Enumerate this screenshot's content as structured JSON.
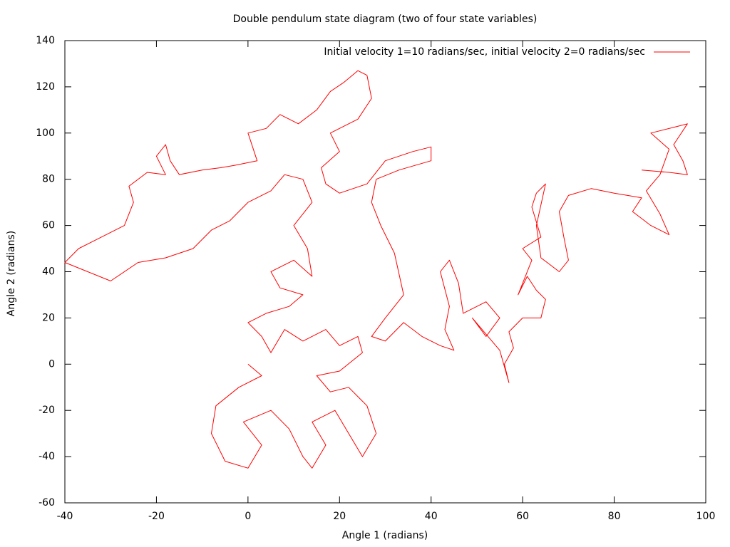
{
  "chart_data": {
    "type": "line",
    "title": "Double pendulum state diagram (two of four state variables)",
    "x_label": "Angle 1 (radians)",
    "y_label": "Angle 2 (radians)",
    "xlim": [
      -40,
      100
    ],
    "xticks": [
      -40,
      -20,
      0,
      20,
      40,
      60,
      80,
      100
    ],
    "ylim": [
      -60,
      140
    ],
    "yticks": [
      -60,
      -40,
      -20,
      0,
      20,
      40,
      60,
      80,
      100,
      120,
      140
    ],
    "legend": "top-right",
    "grid": false,
    "x": [
      0,
      3,
      -2,
      -7,
      -8,
      -5,
      0,
      3,
      -1,
      5,
      9,
      12,
      14,
      17,
      14,
      19,
      22,
      25,
      28,
      26,
      22,
      18,
      15,
      20,
      25,
      24,
      20,
      17,
      12,
      8,
      5,
      3,
      0,
      4,
      9,
      12,
      7,
      5,
      10,
      14,
      13,
      10,
      14,
      12,
      8,
      5,
      0,
      -4,
      -8,
      -12,
      -18,
      -24,
      -30,
      -35,
      -40,
      -37,
      -31,
      -27,
      -25,
      -26,
      -22,
      -18,
      -20,
      -18,
      -17,
      -15,
      -10,
      -6,
      -3,
      2,
      0,
      4,
      7,
      11,
      15,
      18,
      21,
      24,
      26,
      27,
      24,
      18,
      20,
      16,
      17,
      20,
      26,
      30,
      36,
      40,
      40,
      33,
      28,
      27,
      29,
      32,
      34,
      30,
      27,
      30,
      34,
      38,
      42,
      45,
      43,
      44,
      42,
      44,
      46,
      47,
      52,
      55,
      52,
      49,
      55,
      57,
      56,
      58,
      57,
      60,
      64,
      65,
      63,
      61,
      59,
      62,
      60,
      64,
      62,
      63,
      65,
      63,
      64,
      68,
      70,
      69,
      68,
      70,
      75,
      80,
      86,
      84,
      88,
      92,
      90,
      87,
      90,
      92,
      88,
      94,
      96,
      93,
      95,
      96,
      92,
      86
    ],
    "series": [
      {
        "name": "Initial velocity 1=10 radians/sec, initial velocity 2=0 radians/sec",
        "color": "#ff0000",
        "values": [
          0,
          -5,
          -10,
          -18,
          -30,
          -42,
          -45,
          -35,
          -25,
          -20,
          -28,
          -40,
          -45,
          -35,
          -25,
          -20,
          -30,
          -40,
          -30,
          -18,
          -10,
          -12,
          -5,
          -3,
          5,
          12,
          8,
          15,
          10,
          15,
          5,
          12,
          18,
          22,
          25,
          30,
          33,
          40,
          45,
          38,
          50,
          60,
          70,
          80,
          82,
          75,
          70,
          62,
          58,
          50,
          46,
          44,
          36,
          40,
          44,
          50,
          56,
          60,
          70,
          77,
          83,
          82,
          90,
          95,
          88,
          82,
          84,
          85,
          86,
          88,
          100,
          102,
          108,
          104,
          110,
          118,
          122,
          127,
          125,
          115,
          106,
          100,
          92,
          85,
          78,
          74,
          78,
          88,
          92,
          94,
          88,
          84,
          80,
          70,
          60,
          48,
          30,
          20,
          12,
          10,
          18,
          12,
          8,
          6,
          15,
          25,
          40,
          45,
          35,
          22,
          27,
          20,
          12,
          20,
          6,
          -8,
          0,
          7,
          14,
          20,
          20,
          28,
          32,
          38,
          30,
          45,
          50,
          55,
          68,
          74,
          78,
          60,
          46,
          40,
          45,
          55,
          66,
          73,
          76,
          74,
          72,
          66,
          60,
          56,
          65,
          75,
          82,
          93,
          100,
          103,
          104,
          95,
          88,
          82,
          83,
          84
        ]
      }
    ]
  }
}
